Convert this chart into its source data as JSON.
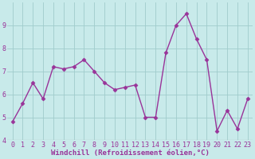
{
  "x": [
    0,
    1,
    2,
    3,
    4,
    5,
    6,
    7,
    8,
    9,
    10,
    11,
    12,
    13,
    14,
    15,
    16,
    17,
    18,
    19,
    20,
    21,
    22,
    23
  ],
  "y": [
    4.8,
    5.6,
    6.5,
    5.8,
    7.2,
    7.1,
    7.2,
    7.5,
    7.0,
    6.5,
    6.2,
    6.3,
    6.4,
    5.0,
    5.0,
    7.8,
    9.0,
    9.5,
    8.4,
    7.5,
    4.4,
    5.3,
    4.5,
    5.8
  ],
  "line_color": "#993399",
  "marker": "D",
  "marker_size": 2.5,
  "bg_color": "#c8eaea",
  "grid_color": "#a0cccc",
  "xlabel": "Windchill (Refroidissement éolien,°C)",
  "xlabel_color": "#993399",
  "xlabel_fontsize": 6.5,
  "tick_color": "#993399",
  "tick_fontsize": 6,
  "ylim": [
    4,
    10
  ],
  "xlim": [
    -0.5,
    23.5
  ],
  "yticks": [
    4,
    5,
    6,
    7,
    8,
    9
  ],
  "xticks": [
    0,
    1,
    2,
    3,
    4,
    5,
    6,
    7,
    8,
    9,
    10,
    11,
    12,
    13,
    14,
    15,
    16,
    17,
    18,
    19,
    20,
    21,
    22,
    23
  ],
  "linewidth": 1.0
}
